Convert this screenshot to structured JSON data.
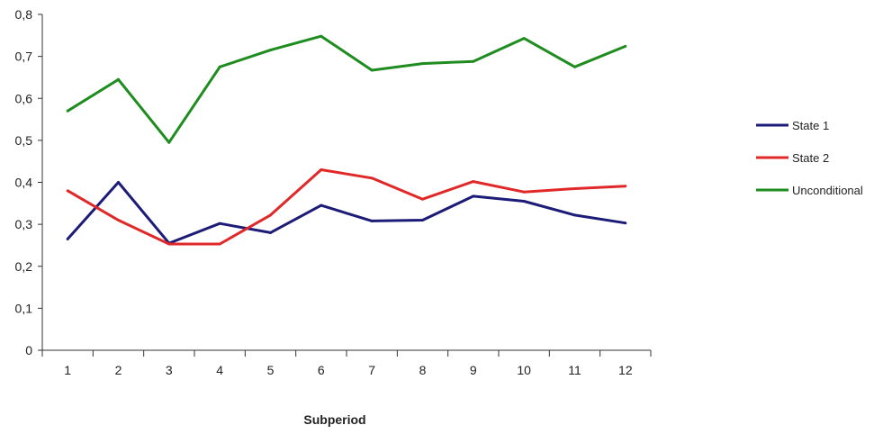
{
  "chart_data": {
    "type": "line",
    "title": "",
    "xlabel": "Subperiod",
    "ylabel": "",
    "categories": [
      "1",
      "2",
      "3",
      "4",
      "5",
      "6",
      "7",
      "8",
      "9",
      "10",
      "11",
      "12"
    ],
    "ylim": [
      0,
      0.8
    ],
    "yticks": [
      0,
      0.1,
      0.2,
      0.3,
      0.4,
      0.5,
      0.6,
      0.7,
      0.8
    ],
    "ytick_labels": [
      "0",
      "0,1",
      "0,2",
      "0,3",
      "0,4",
      "0,5",
      "0,6",
      "0,7",
      "0,8"
    ],
    "grid": false,
    "legend_position": "right",
    "series": [
      {
        "name": "State 1",
        "color": "#1c1c78",
        "values": [
          0.265,
          0.4,
          0.255,
          0.302,
          0.28,
          0.345,
          0.308,
          0.31,
          0.367,
          0.355,
          0.322,
          0.303
        ]
      },
      {
        "name": "State 2",
        "color": "#e02828",
        "values": [
          0.38,
          0.31,
          0.253,
          0.253,
          0.322,
          0.43,
          0.41,
          0.36,
          0.402,
          0.377,
          0.385,
          0.391
        ]
      },
      {
        "name": "Unconditional",
        "color": "#1e8c1e",
        "values": [
          0.57,
          0.645,
          0.495,
          0.675,
          0.715,
          0.748,
          0.667,
          0.683,
          0.688,
          0.743,
          0.675,
          0.724
        ]
      }
    ]
  }
}
